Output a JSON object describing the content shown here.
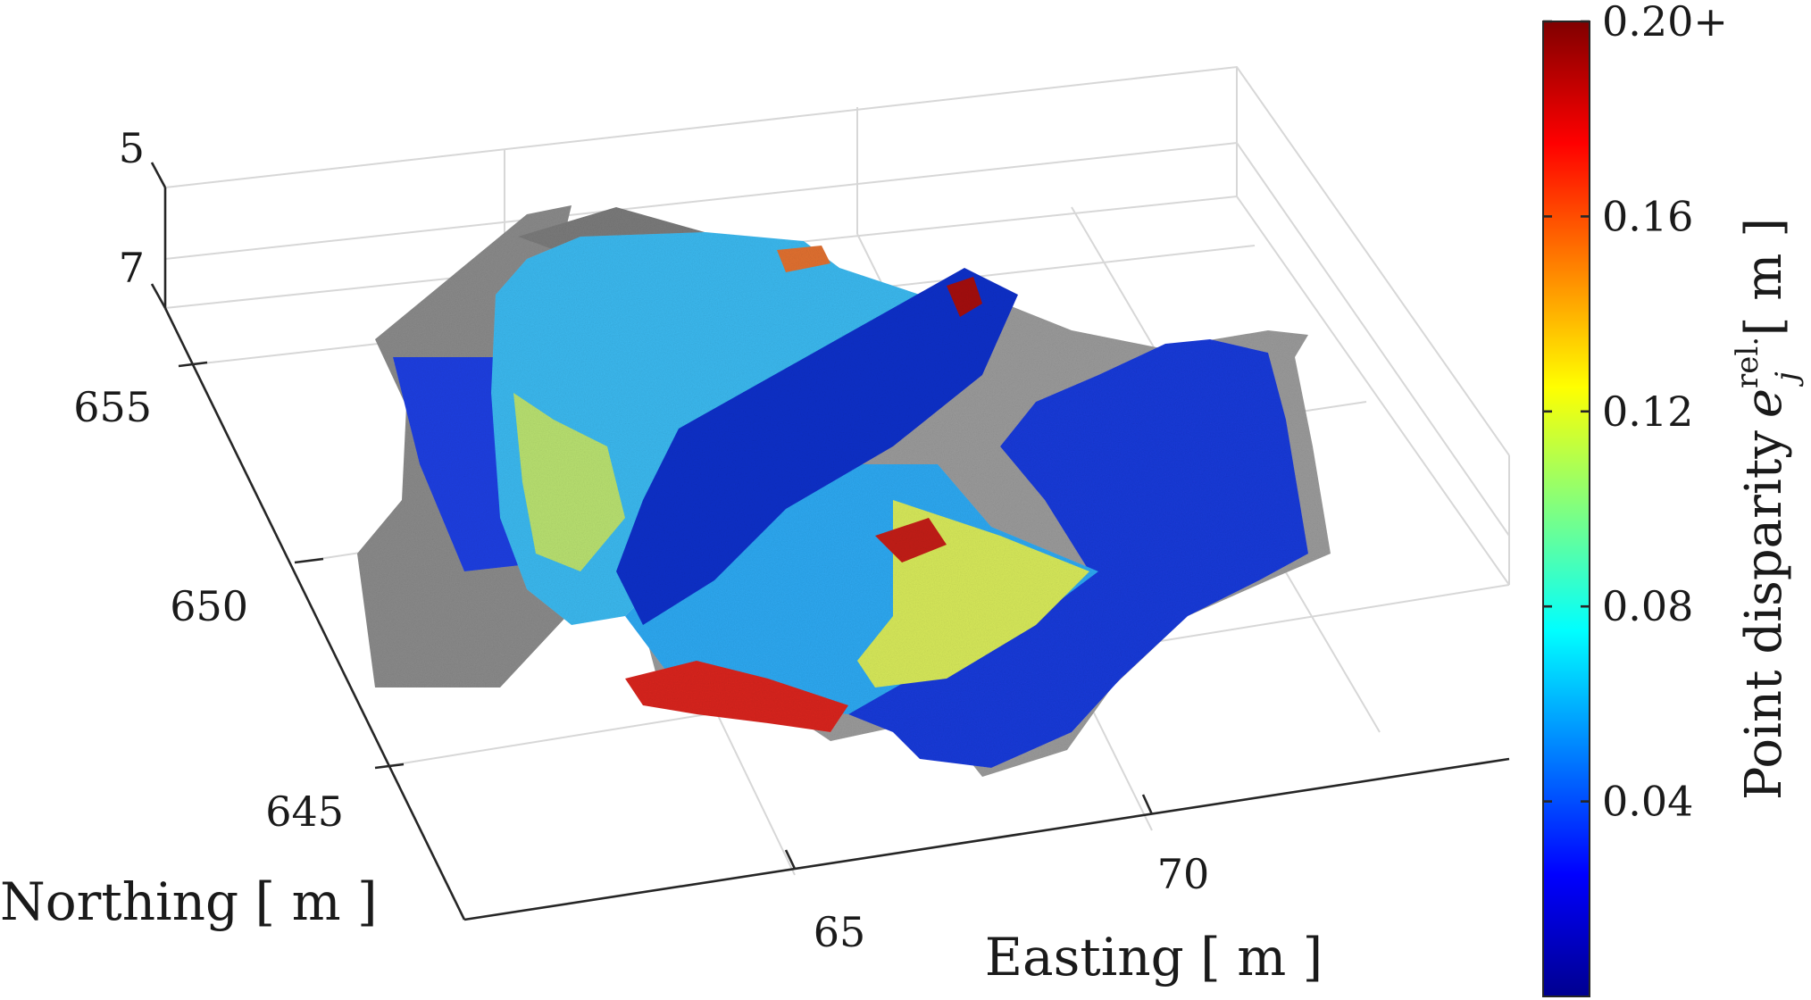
{
  "chart_data": {
    "type": "scatter",
    "subtype": "3d-point-cloud",
    "title": "",
    "axes": {
      "x": {
        "label": "Easting [ m ]",
        "ticks": [
          65,
          70
        ]
      },
      "y": {
        "label": "Northing [ m ]",
        "ticks": [
          645,
          650,
          655
        ]
      },
      "z": {
        "label": "",
        "ticks": [
          5,
          7
        ],
        "reversed": true
      }
    },
    "grid": true,
    "colorbar": {
      "label_text": "Point disparity",
      "label_symbol": "e",
      "label_subscript": "j",
      "label_superscript": "rel.",
      "label_unit": "[ m ]",
      "colormap": "jet",
      "range": [
        0.0,
        0.2
      ],
      "ticks": [
        0.04,
        0.08,
        0.12,
        0.16,
        0.2
      ],
      "tick_labels": [
        "0.04",
        "0.08",
        "0.12",
        "0.16",
        "0.20+"
      ],
      "colormap_stops": [
        "#00008f",
        "#0000ff",
        "#0080ff",
        "#00ffff",
        "#80ff80",
        "#ffff00",
        "#ff8000",
        "#ff0000",
        "#800000"
      ]
    },
    "background_points_color": "#8a8a8a"
  }
}
